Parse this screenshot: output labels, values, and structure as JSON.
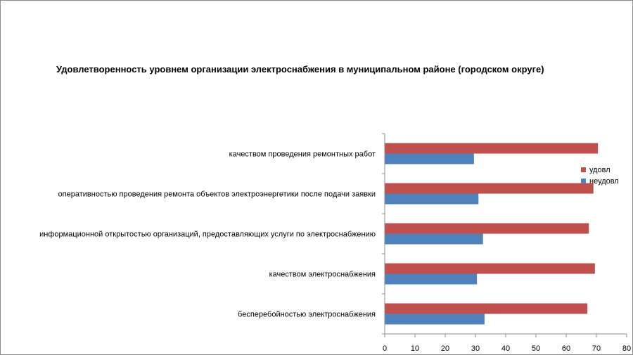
{
  "chart_data": {
    "type": "bar",
    "orientation": "horizontal",
    "title": "Удовлетворенность уровнем организации электроснабжения в муниципальном районе (городском округе)",
    "categories": [
      "качеством проведения ремонтных работ",
      "оперативностью проведения ремонта объектов электроэнергетики после подачи заявки",
      "информационной открытостью организаций, предоставляющих услуги по электроснабжению",
      "качеством электроснабжения",
      "бесперебойностью электроснабжения"
    ],
    "series": [
      {
        "name": "удовл",
        "color": "#c0504d",
        "values": [
          70.5,
          69,
          67.5,
          69.5,
          67
        ]
      },
      {
        "name": "неудовл",
        "color": "#4f81bd",
        "values": [
          29.5,
          31,
          32.5,
          30.5,
          33
        ]
      }
    ],
    "xlim": [
      0,
      80
    ],
    "xticks": [
      0,
      10,
      20,
      30,
      40,
      50,
      60,
      70,
      80
    ],
    "xlabel": "",
    "ylabel": "",
    "grid": false,
    "legend_position": "right"
  }
}
